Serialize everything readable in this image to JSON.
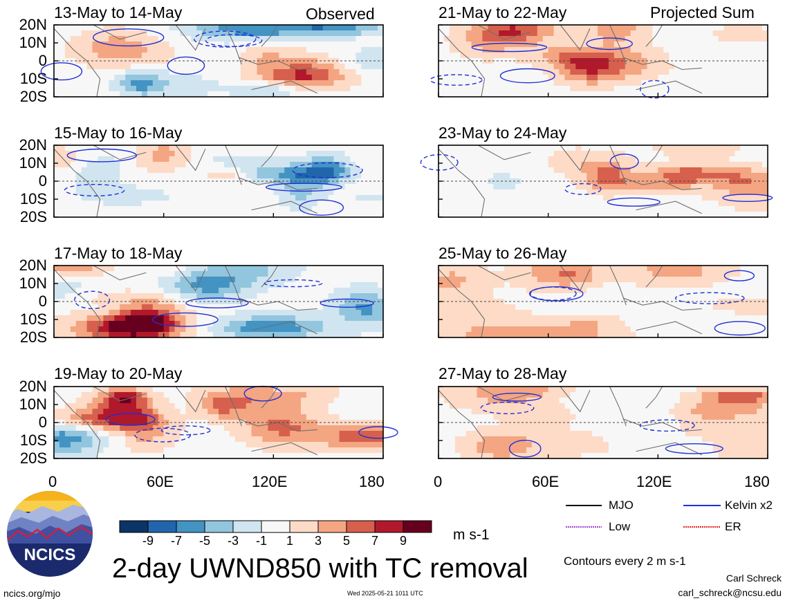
{
  "labels": {
    "observed": "Observed",
    "projected": "Projected Sum",
    "main_title": "2-day UWND850 with TC removal",
    "units": "m s-1",
    "contours": "Contours every 2 m s-1",
    "author": "Carl Schreck",
    "email": "carl_schreck@ncsu.edu",
    "site": "ncics.org/mjo",
    "timestamp": "Wed 2025-05-21 1011 UTC",
    "logo_text": "NCICS"
  },
  "colors": {
    "kelvin": "#1f2fd6",
    "mjo": "#000000",
    "low": "#a040d0",
    "er": "#e02020"
  },
  "chart_data": {
    "type": "heatmap",
    "variable": "2-day UWND850 with TC removal",
    "units": "m s-1",
    "colorbar": {
      "ticks": [
        "-9",
        "-7",
        "-5",
        "-3",
        "-1",
        "1",
        "3",
        "5",
        "7",
        "9"
      ],
      "colors": [
        "#0b3467",
        "#2166ac",
        "#4393c3",
        "#92c5de",
        "#d1e5f0",
        "#f7f7f7",
        "#fddbc7",
        "#f4a582",
        "#d6604d",
        "#b2182b",
        "#67001f"
      ]
    },
    "xticks": [
      "0",
      "60E",
      "120E",
      "180"
    ],
    "yticks": [
      "20N",
      "10N",
      "0",
      "10S",
      "20S"
    ],
    "xlim": [
      0,
      180
    ],
    "ylim": [
      -20,
      20
    ],
    "legend": [
      {
        "name": "MJO",
        "color": "#000000"
      },
      {
        "name": "Kelvin x2",
        "color": "#1f2fd6"
      },
      {
        "name": "Low",
        "color": "#a040d0"
      },
      {
        "name": "ER",
        "color": "#e02020"
      }
    ],
    "panels_observed": [
      {
        "title": "13-May to 14-May"
      },
      {
        "title": "15-May to 16-May"
      },
      {
        "title": "17-May to 18-May"
      },
      {
        "title": "19-May to 20-May"
      }
    ],
    "panels_projected": [
      {
        "title": "21-May to 22-May"
      },
      {
        "title": "23-May to 24-May"
      },
      {
        "title": "25-May to 26-May"
      },
      {
        "title": "27-May to 28-May"
      }
    ]
  }
}
